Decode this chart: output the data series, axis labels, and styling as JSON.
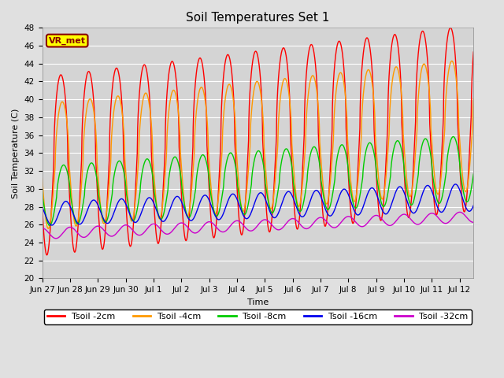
{
  "title": "Soil Temperatures Set 1",
  "xlabel": "Time",
  "ylabel": "Soil Temperature (C)",
  "ylim": [
    20,
    48
  ],
  "yticks": [
    20,
    22,
    24,
    26,
    28,
    30,
    32,
    34,
    36,
    38,
    40,
    42,
    44,
    46,
    48
  ],
  "background_color": "#e0e0e0",
  "plot_bg_color": "#d4d4d4",
  "legend_labels": [
    "Tsoil -2cm",
    "Tsoil -4cm",
    "Tsoil -8cm",
    "Tsoil -16cm",
    "Tsoil -32cm"
  ],
  "line_colors": [
    "#ff0000",
    "#ff9900",
    "#00cc00",
    "#0000ee",
    "#cc00cc"
  ],
  "vr_met_label": "VR_met",
  "vr_met_bg": "#ffff00",
  "vr_met_border": "#880000",
  "xtick_labels": [
    "Jun 27",
    "Jun 28",
    "Jun 29",
    "Jun 30",
    "Jul 1",
    "Jul 2",
    "Jul 3",
    "Jul 4",
    "Jul 5",
    "Jul 6",
    "Jul 7",
    "Jul 8",
    "Jul 9",
    "Jul 10",
    "Jul 11",
    "Jul 12"
  ],
  "title_fontsize": 11,
  "axis_label_fontsize": 8,
  "tick_fontsize": 7.5,
  "legend_fontsize": 8
}
